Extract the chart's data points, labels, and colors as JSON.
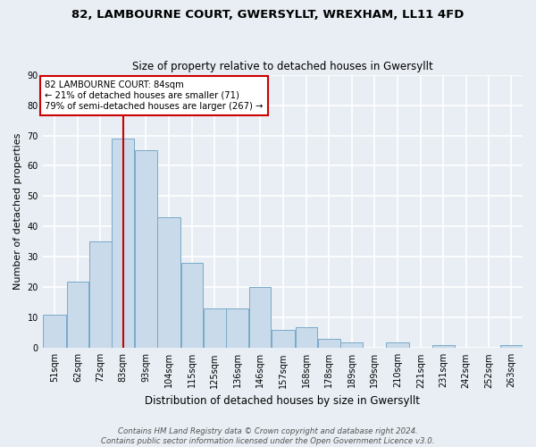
{
  "title1": "82, LAMBOURNE COURT, GWERSYLLT, WREXHAM, LL11 4FD",
  "title2": "Size of property relative to detached houses in Gwersyllt",
  "xlabel": "Distribution of detached houses by size in Gwersyllt",
  "ylabel": "Number of detached properties",
  "bar_values": [
    11,
    22,
    35,
    69,
    65,
    43,
    28,
    13,
    13,
    20,
    6,
    7,
    3,
    2,
    0,
    2,
    0,
    1,
    0,
    0,
    1
  ],
  "bar_labels": [
    "51sqm",
    "62sqm",
    "72sqm",
    "83sqm",
    "93sqm",
    "104sqm",
    "115sqm",
    "125sqm",
    "136sqm",
    "146sqm",
    "157sqm",
    "168sqm",
    "178sqm",
    "189sqm",
    "199sqm",
    "210sqm",
    "221sqm",
    "231sqm",
    "242sqm",
    "252sqm",
    "263sqm"
  ],
  "bar_edges": [
    45.5,
    56.5,
    67,
    77.5,
    88,
    98.5,
    109.5,
    120,
    130.5,
    141,
    151.5,
    162.5,
    173,
    183.5,
    194,
    204.5,
    215.5,
    226,
    236.5,
    247,
    257.5,
    268
  ],
  "bar_color": "#c9daea",
  "bar_edge_color": "#7aaac8",
  "highlight_x": 83,
  "highlight_color": "#cc0000",
  "annotation_text": "82 LAMBOURNE COURT: 84sqm\n← 21% of detached houses are smaller (71)\n79% of semi-detached houses are larger (267) →",
  "annotation_box_color": "#ffffff",
  "annotation_box_edge": "#cc0000",
  "yticks": [
    0,
    10,
    20,
    30,
    40,
    50,
    60,
    70,
    80,
    90
  ],
  "ylim": [
    0,
    90
  ],
  "xlim": [
    45.5,
    268
  ],
  "footer": "Contains HM Land Registry data © Crown copyright and database right 2024.\nContains public sector information licensed under the Open Government Licence v3.0.",
  "bg_color": "#e8eef4",
  "grid_color": "#ffffff"
}
